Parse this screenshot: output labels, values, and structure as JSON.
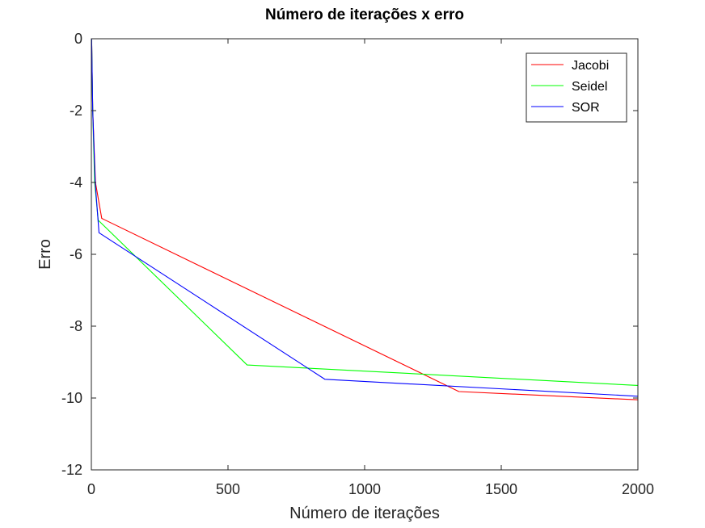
{
  "chart_data": {
    "type": "line",
    "title": "Número de iterações x erro",
    "xlabel": "Número de iterações",
    "ylabel": "Erro",
    "xlim": [
      0,
      2000
    ],
    "ylim": [
      -12,
      0
    ],
    "xticks": [
      0,
      500,
      1000,
      1500,
      2000
    ],
    "yticks": [
      0,
      -2,
      -4,
      -6,
      -8,
      -10,
      -12
    ],
    "grid": false,
    "legend_position": "top-right",
    "series": [
      {
        "name": "Jacobi",
        "color": "#ff0000",
        "points": [
          [
            1,
            0
          ],
          [
            5,
            -2.0
          ],
          [
            15,
            -4.0
          ],
          [
            38,
            -5.0
          ],
          [
            1345,
            -9.82
          ],
          [
            2000,
            -10.05
          ]
        ]
      },
      {
        "name": "Seidel",
        "color": "#00ff00",
        "points": [
          [
            1,
            0
          ],
          [
            5,
            -2.0
          ],
          [
            12,
            -4.0
          ],
          [
            25,
            -5.05
          ],
          [
            570,
            -9.08
          ],
          [
            2000,
            -9.65
          ]
        ]
      },
      {
        "name": "SOR",
        "color": "#0000ff",
        "points": [
          [
            1,
            0
          ],
          [
            5,
            -2.0
          ],
          [
            14,
            -4.0
          ],
          [
            28,
            -5.4
          ],
          [
            855,
            -9.48
          ],
          [
            2000,
            -9.95
          ]
        ]
      }
    ]
  }
}
